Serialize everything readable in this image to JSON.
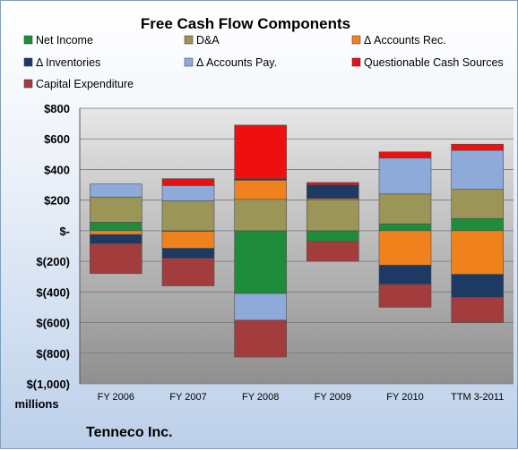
{
  "chart_data": {
    "type": "bar",
    "stacked": true,
    "title": "Free Cash Flow Components",
    "categories": [
      "FY 2006",
      "FY 2007",
      "FY 2008",
      "FY 2009",
      "FY 2010",
      "TTM 3-2011"
    ],
    "series": [
      {
        "name": "Net Income",
        "color": "#1e8c3a",
        "values": [
          55,
          -5,
          -410,
          -70,
          45,
          80
        ]
      },
      {
        "name": "D&A",
        "color": "#9c9558",
        "values": [
          165,
          195,
          205,
          200,
          195,
          190
        ]
      },
      {
        "name": "Δ Accounts Rec.",
        "color": "#f0821e",
        "values": [
          -25,
          -110,
          125,
          10,
          -225,
          -285
        ]
      },
      {
        "name": "Δ Inventories",
        "color": "#1c3a64",
        "values": [
          -60,
          -65,
          10,
          90,
          -125,
          -150
        ]
      },
      {
        "name": "Δ Accounts Pay.",
        "color": "#8eaad8",
        "values": [
          85,
          100,
          -175,
          0,
          235,
          255
        ]
      },
      {
        "name": "Questionable Cash Sources",
        "color": "#ee1010",
        "values": [
          0,
          45,
          350,
          15,
          40,
          40
        ]
      },
      {
        "name": "Capital Expenditure",
        "color": "#a33c3c",
        "values": [
          -195,
          -180,
          -240,
          -130,
          -150,
          -165
        ]
      }
    ],
    "ylim": [
      -1000,
      800
    ],
    "yticks": [
      800,
      600,
      400,
      200,
      0,
      -200,
      -400,
      -600,
      -800,
      -1000
    ],
    "ytick_labels": [
      "$800",
      "$600",
      "$400",
      "$200",
      "$-",
      "$(200)",
      "$(400)",
      "$(600)",
      "$(800)",
      "$(1,000)"
    ],
    "ylabel": "millions",
    "legend_position": "top",
    "grid": true
  },
  "company": "Tenneco Inc."
}
